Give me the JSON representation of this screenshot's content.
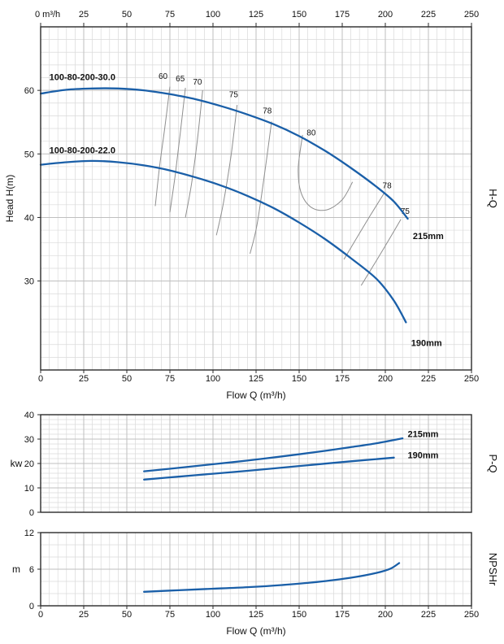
{
  "accent_color": "#1a5fa8",
  "grid_minor_color": "#dadada",
  "grid_major_color": "#bfbfbf",
  "border_color": "#2b2b2b",
  "efficiency_line_color": "#8f8f8f",
  "chart_data": [
    {
      "id": "h-q",
      "type": "line",
      "right_label": "H-Q",
      "x_axis": {
        "min": 0,
        "max": 250,
        "major_step": 25,
        "minor_step": 5,
        "top_labels": [
          "0 m³/h",
          "25",
          "50",
          "75",
          "100",
          "125",
          "150",
          "175",
          "200",
          "225",
          "250"
        ],
        "bottom_labels": [
          "0",
          "25",
          "50",
          "75",
          "100",
          "125",
          "150",
          "175",
          "200",
          "225",
          "250"
        ],
        "title": "Flow Q (m³/h)"
      },
      "y_axis": {
        "min": 16,
        "max": 70,
        "minor_step": 2,
        "ticks": [
          30,
          40,
          50,
          60
        ],
        "title": "Head H(m)",
        "rotate_title": true
      },
      "series": [
        {
          "name": "215mm",
          "model": "100-80-200-30.0",
          "color": "#1a5fa8",
          "points": [
            [
              0,
              59.5
            ],
            [
              15,
              60.1
            ],
            [
              30,
              60.3
            ],
            [
              45,
              60.3
            ],
            [
              60,
              60.0
            ],
            [
              75,
              59.4
            ],
            [
              90,
              58.6
            ],
            [
              105,
              57.5
            ],
            [
              120,
              56.2
            ],
            [
              135,
              54.7
            ],
            [
              150,
              52.8
            ],
            [
              165,
              50.5
            ],
            [
              180,
              47.8
            ],
            [
              195,
              44.8
            ],
            [
              205,
              42.5
            ],
            [
              213,
              39.8
            ]
          ]
        },
        {
          "name": "190mm",
          "model": "100-80-200-22.0",
          "color": "#1a5fa8",
          "points": [
            [
              0,
              48.3
            ],
            [
              15,
              48.7
            ],
            [
              30,
              48.9
            ],
            [
              45,
              48.7
            ],
            [
              60,
              48.2
            ],
            [
              75,
              47.4
            ],
            [
              90,
              46.3
            ],
            [
              105,
              45.0
            ],
            [
              120,
              43.4
            ],
            [
              135,
              41.5
            ],
            [
              150,
              39.2
            ],
            [
              165,
              36.6
            ],
            [
              180,
              33.6
            ],
            [
              195,
              30.3
            ],
            [
              205,
              26.9
            ],
            [
              212,
              23.5
            ]
          ]
        }
      ],
      "efficiency_lines": [
        {
          "label": "60",
          "label_pos": [
            71,
            61.8
          ],
          "points": [
            [
              75,
              60.6
            ],
            [
              72,
              54.0
            ],
            [
              69,
              48.0
            ],
            [
              66.5,
              41.8
            ]
          ]
        },
        {
          "label": "65",
          "label_pos": [
            81,
            61.4
          ],
          "points": [
            [
              84,
              60.4
            ],
            [
              81,
              53.2
            ],
            [
              78,
              46.5
            ],
            [
              75,
              40.8
            ]
          ]
        },
        {
          "label": "70",
          "label_pos": [
            91,
            60.9
          ],
          "points": [
            [
              94,
              60.0
            ],
            [
              91,
              52.3
            ],
            [
              87.5,
              45.2
            ],
            [
              84,
              40.0
            ]
          ]
        },
        {
          "label": "75",
          "label_pos": [
            112,
            58.9
          ],
          "points": [
            [
              114,
              57.7
            ],
            [
              110.5,
              49.8
            ],
            [
              106,
              42.2
            ],
            [
              102,
              37.2
            ]
          ]
        },
        {
          "label": "78",
          "label_pos": [
            131.5,
            56.4
          ],
          "points": [
            [
              134,
              55.1
            ],
            [
              130,
              47.0
            ],
            [
              125.5,
              38.8
            ],
            [
              121.5,
              34.3
            ]
          ]
        },
        {
          "label": "80",
          "label_pos": [
            157,
            52.9
          ],
          "points": [
            [
              152,
              53.0
            ],
            [
              149.5,
              47.8
            ],
            [
              151,
              44.0
            ],
            [
              157,
              41.6
            ],
            [
              166,
              41.2
            ],
            [
              175,
              42.8
            ],
            [
              181,
              45.6
            ]
          ]
        },
        {
          "label": "78",
          "label_pos": [
            201,
            44.6
          ],
          "points": [
            [
              199.5,
              43.9
            ],
            [
              191,
              40.2
            ],
            [
              183,
              36.6
            ],
            [
              176,
              33.4
            ]
          ]
        },
        {
          "label": "75",
          "label_pos": [
            211.5,
            40.6
          ],
          "points": [
            [
              209,
              39.7
            ],
            [
              201,
              36.0
            ],
            [
              193,
              32.4
            ],
            [
              186,
              29.3
            ]
          ]
        }
      ],
      "annotations": [
        {
          "text": "100-80-200-30.0",
          "pos": [
            5,
            61.6
          ],
          "bold": true,
          "anchor": "start"
        },
        {
          "text": "100-80-200-22.0",
          "pos": [
            5,
            50.1
          ],
          "bold": true,
          "anchor": "start"
        },
        {
          "text": "215mm",
          "pos": [
            216,
            36.6
          ],
          "bold": true,
          "anchor": "start"
        },
        {
          "text": "190mm",
          "pos": [
            215,
            19.8
          ],
          "bold": true,
          "anchor": "start"
        }
      ]
    },
    {
      "id": "p-q",
      "type": "line",
      "right_label": "P-Q",
      "x_axis": {
        "min": 0,
        "max": 250,
        "major_step": 25,
        "minor_step": 5
      },
      "y_axis": {
        "min": 0,
        "max": 40,
        "minor_step": 2,
        "ticks": [
          0,
          10,
          20,
          30,
          40
        ],
        "title": "kw",
        "rotate_title": false
      },
      "series": [
        {
          "name": "215mm",
          "color": "#1a5fa8",
          "points": [
            [
              60,
              16.8
            ],
            [
              80,
              18.2
            ],
            [
              100,
              19.7
            ],
            [
              120,
              21.2
            ],
            [
              140,
              22.9
            ],
            [
              160,
              24.7
            ],
            [
              180,
              26.7
            ],
            [
              195,
              28.3
            ],
            [
              210,
              30.3
            ]
          ]
        },
        {
          "name": "190mm",
          "color": "#1a5fa8",
          "points": [
            [
              60,
              13.4
            ],
            [
              80,
              14.6
            ],
            [
              100,
              15.8
            ],
            [
              120,
              17.0
            ],
            [
              140,
              18.3
            ],
            [
              160,
              19.6
            ],
            [
              180,
              20.9
            ],
            [
              195,
              21.8
            ],
            [
              205,
              22.4
            ]
          ]
        }
      ],
      "efficiency_lines": [],
      "annotations": [
        {
          "text": "215mm",
          "pos": [
            213,
            30.8
          ],
          "bold": true,
          "anchor": "start"
        },
        {
          "text": "190mm",
          "pos": [
            213,
            22.2
          ],
          "bold": true,
          "anchor": "start"
        }
      ]
    },
    {
      "id": "npshr",
      "type": "line",
      "right_label": "NPSHr",
      "x_axis": {
        "min": 0,
        "max": 250,
        "major_step": 25,
        "minor_step": 5,
        "bottom_labels": [
          "0",
          "25",
          "50",
          "75",
          "100",
          "125",
          "150",
          "175",
          "200",
          "225",
          "250"
        ],
        "title": "Flow Q (m³/h)"
      },
      "y_axis": {
        "min": 0,
        "max": 12,
        "minor_step": 2,
        "ticks": [
          0,
          6,
          12
        ],
        "title": "m",
        "rotate_title": false
      },
      "series": [
        {
          "name": "NPSHr",
          "color": "#1a5fa8",
          "points": [
            [
              60,
              2.3
            ],
            [
              80,
              2.55
            ],
            [
              100,
              2.8
            ],
            [
              120,
              3.05
            ],
            [
              140,
              3.4
            ],
            [
              160,
              3.9
            ],
            [
              180,
              4.6
            ],
            [
              195,
              5.4
            ],
            [
              203,
              6.1
            ],
            [
              208,
              7.0
            ]
          ]
        }
      ],
      "efficiency_lines": [],
      "annotations": []
    }
  ]
}
